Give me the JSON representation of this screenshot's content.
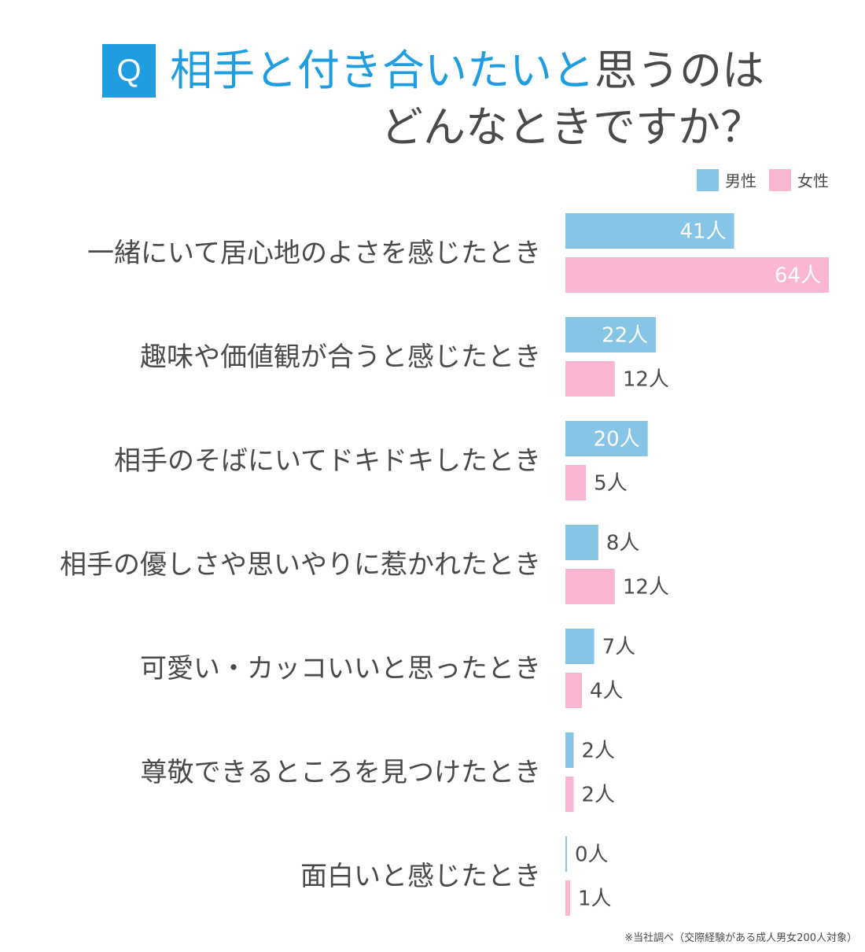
{
  "title": {
    "q_badge": "Q",
    "line1_highlight": "相手と付き合いたいと",
    "line1_rest": "思うのは",
    "line2": "どんなときですか？"
  },
  "legend": {
    "male": "男性",
    "female": "女性"
  },
  "colors": {
    "male": "#87c5e6",
    "female": "#fbb6d3",
    "accent": "#1e9ee0",
    "text": "#4a4a4a"
  },
  "chart_data": {
    "type": "bar",
    "orientation": "horizontal",
    "unit": "人",
    "categories": [
      "一緒にいて居心地のよさを感じたとき",
      "趣味や価値観が合うと感じたとき",
      "相手のそばにいてドキドキしたとき",
      "相手の優しさや思いやりに惹かれたとき",
      "可愛い・カッコいいと思ったとき",
      "尊敬できるところを見つけたとき",
      "面白いと感じたとき"
    ],
    "series": [
      {
        "name": "男性",
        "values": [
          41,
          22,
          20,
          8,
          7,
          2,
          0
        ]
      },
      {
        "name": "女性",
        "values": [
          64,
          12,
          5,
          12,
          4,
          2,
          1
        ]
      }
    ],
    "value_labels": {
      "male": [
        "41人",
        "22人",
        "20人",
        "8人",
        "7人",
        "2人",
        "0人"
      ],
      "female": [
        "64人",
        "12人",
        "5人",
        "12人",
        "4人",
        "2人",
        "1人"
      ]
    },
    "xlim": [
      0,
      64
    ]
  },
  "footnote": "※当社調べ（交際経験がある成人男女200人対象）"
}
